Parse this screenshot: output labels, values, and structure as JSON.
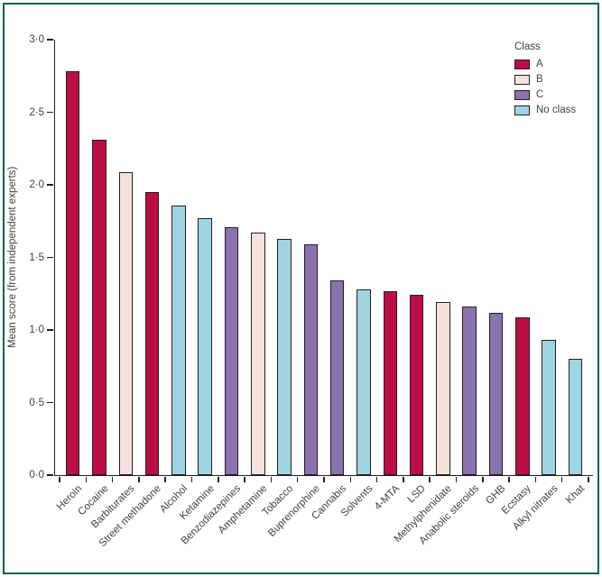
{
  "frame": {
    "border_color": "#00683C"
  },
  "colors": {
    "class_a": "#BC0E45",
    "class_b": "#F6E2DB",
    "class_c": "#8B71AE",
    "no_class": "#9FD4E2",
    "axis": "#231F20",
    "text": "#3F4143"
  },
  "chart_data": {
    "type": "bar",
    "title": "",
    "xlabel": "",
    "ylabel": "Mean score (from independent experts)",
    "ylim": [
      0,
      3
    ],
    "ytick_step": 0.5,
    "ytick_labels": [
      "0·0",
      "0·5",
      "1·0",
      "1·5",
      "2·0",
      "2·5",
      "3·0"
    ],
    "grid": false,
    "legend": {
      "title": "Class",
      "position": "top-right",
      "entries": [
        {
          "label": "A",
          "class_key": "class_a",
          "color": "#BC0E45"
        },
        {
          "label": "B",
          "class_key": "class_b",
          "color": "#F6E2DB"
        },
        {
          "label": "C",
          "class_key": "class_c",
          "color": "#8B71AE"
        },
        {
          "label": "No class",
          "class_key": "no_class",
          "color": "#9FD4E2"
        }
      ]
    },
    "categories": [
      "Heroin",
      "Cocaine",
      "Barbiturates",
      "Street methadone",
      "Alcohol",
      "Ketamine",
      "Benzodiazepines",
      "Amphetamine",
      "Tobacco",
      "Buprenorphine",
      "Cannabis",
      "Solvents",
      "4-MTA",
      "LSD",
      "Methylphenidate",
      "Anabolic steroids",
      "GHB",
      "Ecstasy",
      "Alkyl nitrates",
      "Khat"
    ],
    "values": [
      2.78,
      2.31,
      2.09,
      1.95,
      1.86,
      1.77,
      1.71,
      1.67,
      1.63,
      1.59,
      1.34,
      1.28,
      1.27,
      1.24,
      1.19,
      1.16,
      1.12,
      1.09,
      0.93,
      0.8
    ],
    "bar_classes": [
      "A",
      "A",
      "B",
      "A",
      "No class",
      "No class",
      "C",
      "B",
      "No class",
      "C",
      "C",
      "No class",
      "A",
      "A",
      "B",
      "C",
      "C",
      "A",
      "No class",
      "No class"
    ]
  }
}
